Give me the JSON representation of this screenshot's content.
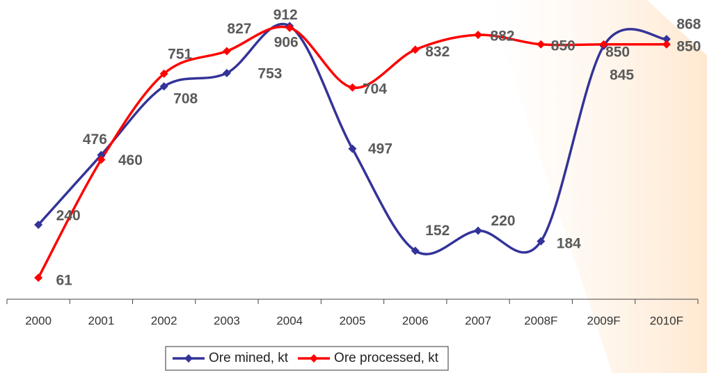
{
  "chart_data": {
    "type": "line",
    "categories": [
      "2000",
      "2001",
      "2002",
      "2003",
      "2004",
      "2005",
      "2006",
      "2007",
      "2008F",
      "2009F",
      "2010F"
    ],
    "series": [
      {
        "name": "Ore mined, kt",
        "color": "#333399",
        "values": [
          240,
          476,
          708,
          753,
          912,
          497,
          152,
          220,
          184,
          845,
          868
        ]
      },
      {
        "name": "Ore processed, kt",
        "color": "#ff0000",
        "values": [
          61,
          460,
          751,
          827,
          906,
          704,
          832,
          882,
          850,
          850,
          850
        ]
      }
    ],
    "ylim": [
      0,
      1000
    ],
    "legend": "bottom"
  }
}
